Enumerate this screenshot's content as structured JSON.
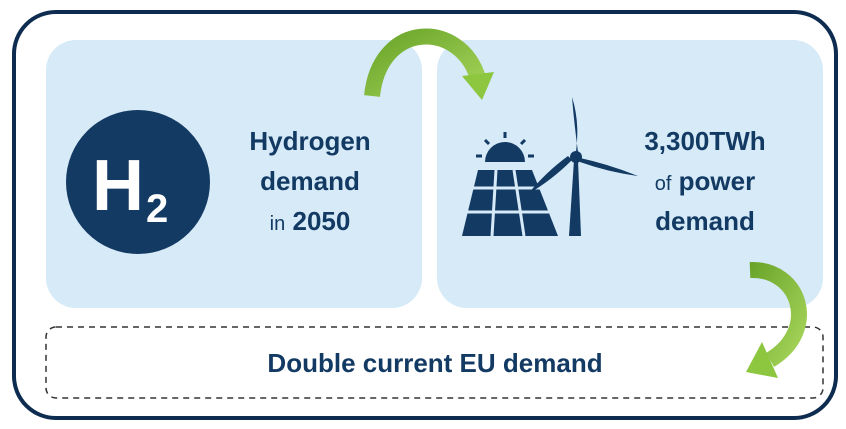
{
  "left": {
    "icon": {
      "letter": "H",
      "subscript": "2"
    },
    "lines": [
      [
        "Hydrogen"
      ],
      [
        "demand"
      ],
      [
        "in",
        "2050"
      ]
    ]
  },
  "right": {
    "lines": [
      [
        "3,300TWh"
      ],
      [
        "of",
        "power"
      ],
      [
        "demand"
      ]
    ]
  },
  "footer": "Double current EU demand"
}
